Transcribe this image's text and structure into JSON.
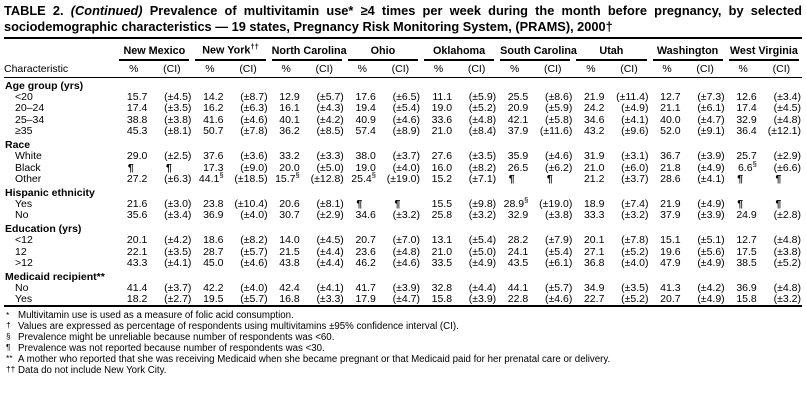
{
  "title": {
    "prefix": "TABLE 2. ",
    "continued": "(Continued)",
    "rest": " Prevalence of multivitamin use* ≥4 times per week during the month before pregnancy, by selected sociodemographic characteristics — 19 states, Pregnancy Risk Monitoring System, (PRAMS), 2000†"
  },
  "table": {
    "characteristic_header": "Characteristic",
    "pct_label": "%",
    "ci_label": "(CI)",
    "states": [
      {
        "label": "New Mexico",
        "sup": ""
      },
      {
        "label": "New York",
        "sup": "††"
      },
      {
        "label": "North Carolina",
        "sup": ""
      },
      {
        "label": "Ohio",
        "sup": ""
      },
      {
        "label": "Oklahoma",
        "sup": ""
      },
      {
        "label": "South Carolina",
        "sup": ""
      },
      {
        "label": "Utah",
        "sup": ""
      },
      {
        "label": "Washington",
        "sup": ""
      },
      {
        "label": "West Virginia",
        "sup": ""
      }
    ],
    "sections": [
      {
        "label": "Age group (yrs)",
        "rows": [
          {
            "label": "<20",
            "cells": [
              [
                "15.7",
                "(±4.5)"
              ],
              [
                "14.2",
                "(±8.7)"
              ],
              [
                "12.9",
                "(±5.7)"
              ],
              [
                "17.6",
                "(±6.5)"
              ],
              [
                "11.1",
                "(±5.9)"
              ],
              [
                "25.5",
                "(±8.6)"
              ],
              [
                "21.9",
                "(±11.4)"
              ],
              [
                "12.7",
                "(±7.3)"
              ],
              [
                "12.6",
                "(±3.4)"
              ]
            ]
          },
          {
            "label": "20–24",
            "cells": [
              [
                "17.4",
                "(±3.5)"
              ],
              [
                "16.2",
                "(±6.3)"
              ],
              [
                "16.1",
                "(±4.3)"
              ],
              [
                "19.4",
                "(±5.4)"
              ],
              [
                "19.0",
                "(±5.2)"
              ],
              [
                "20.9",
                "(±5.9)"
              ],
              [
                "24.2",
                "(±4.9)"
              ],
              [
                "21.1",
                "(±6.1)"
              ],
              [
                "17.4",
                "(±4.5)"
              ]
            ]
          },
          {
            "label": "25–34",
            "cells": [
              [
                "38.8",
                "(±3.8)"
              ],
              [
                "41.6",
                "(±4.6)"
              ],
              [
                "40.1",
                "(±4.2)"
              ],
              [
                "40.9",
                "(±4.6)"
              ],
              [
                "33.6",
                "(±4.8)"
              ],
              [
                "42.1",
                "(±5.8)"
              ],
              [
                "34.6",
                "(±4.1)"
              ],
              [
                "40.0",
                "(±4.7)"
              ],
              [
                "32.9",
                "(±4.8)"
              ]
            ]
          },
          {
            "label": "≥35",
            "cells": [
              [
                "45.3",
                "(±8.1)"
              ],
              [
                "50.7",
                "(±7.8)"
              ],
              [
                "36.2",
                "(±8.5)"
              ],
              [
                "57.4",
                "(±8.9)"
              ],
              [
                "21.0",
                "(±8.4)"
              ],
              [
                "37.9",
                "(±11.6)"
              ],
              [
                "43.2",
                "(±9.6)"
              ],
              [
                "52.0",
                "(±9.1)"
              ],
              [
                "36.4",
                "(±12.1)"
              ]
            ]
          }
        ]
      },
      {
        "label": "Race",
        "rows": [
          {
            "label": "White",
            "cells": [
              [
                "29.0",
                "(±2.5)"
              ],
              [
                "37.6",
                "(±3.6)"
              ],
              [
                "33.2",
                "(±3.3)"
              ],
              [
                "38.0",
                "(±3.7)"
              ],
              [
                "27.6",
                "(±3.5)"
              ],
              [
                "35.9",
                "(±4.6)"
              ],
              [
                "31.9",
                "(±3.1)"
              ],
              [
                "36.7",
                "(±3.9)"
              ],
              [
                "25.7",
                "(±2.9)"
              ]
            ]
          },
          {
            "label": "Black",
            "cells": [
              [
                "¶",
                "¶"
              ],
              [
                "17.3",
                "(±9.0)"
              ],
              [
                "20.0",
                "(±5.0)"
              ],
              [
                "19.0",
                "(±4.0)"
              ],
              [
                "16.0",
                "(±8.2)"
              ],
              [
                "26.5",
                "(±6.2)"
              ],
              [
                "21.0",
                "(±6.0)"
              ],
              [
                "21.8",
                "(±4.9)"
              ],
              [
                "6.6§",
                "(±6.6)"
              ]
            ]
          },
          {
            "label": "Other",
            "cells": [
              [
                "27.2",
                "(±6.3)"
              ],
              [
                "44.1§",
                "(±18.5)"
              ],
              [
                "15.7§",
                "(±12.8)"
              ],
              [
                "25.4§",
                "(±19.0)"
              ],
              [
                "15.2",
                "(±7.1)"
              ],
              [
                "¶",
                "¶"
              ],
              [
                "21.2",
                "(±3.7)"
              ],
              [
                "28.6",
                "(±4.1)"
              ],
              [
                "¶",
                "¶"
              ]
            ]
          }
        ]
      },
      {
        "label": "Hispanic ethnicity",
        "rows": [
          {
            "label": "Yes",
            "cells": [
              [
                "21.6",
                "(±3.0)"
              ],
              [
                "23.8",
                "(±10.4)"
              ],
              [
                "20.6",
                "(±8.1)"
              ],
              [
                "¶",
                "¶"
              ],
              [
                "15.5",
                "(±9.8)"
              ],
              [
                "28.9§",
                "(±19.0)"
              ],
              [
                "18.9",
                "(±7.4)"
              ],
              [
                "21.9",
                "(±4.9)"
              ],
              [
                "¶",
                "¶"
              ]
            ]
          },
          {
            "label": "No",
            "cells": [
              [
                "35.6",
                "(±3.4)"
              ],
              [
                "36.9",
                "(±4.0)"
              ],
              [
                "30.7",
                "(±2.9)"
              ],
              [
                "34.6",
                "(±3.2)"
              ],
              [
                "25.8",
                "(±3.2)"
              ],
              [
                "32.9",
                "(±3.8)"
              ],
              [
                "33.3",
                "(±3.2)"
              ],
              [
                "37.9",
                "(±3.9)"
              ],
              [
                "24.9",
                "(±2.8)"
              ]
            ]
          }
        ]
      },
      {
        "label": "Education (yrs)",
        "rows": [
          {
            "label": "<12",
            "cells": [
              [
                "20.1",
                "(±4.2)"
              ],
              [
                "18.6",
                "(±8.2)"
              ],
              [
                "14.0",
                "(±4.5)"
              ],
              [
                "20.7",
                "(±7.0)"
              ],
              [
                "13.1",
                "(±5.4)"
              ],
              [
                "28.2",
                "(±7.9)"
              ],
              [
                "20.1",
                "(±7.8)"
              ],
              [
                "15.1",
                "(±5.1)"
              ],
              [
                "12.7",
                "(±4.8)"
              ]
            ]
          },
          {
            "label": "12",
            "cells": [
              [
                "22.1",
                "(±3.5)"
              ],
              [
                "28.7",
                "(±5.7)"
              ],
              [
                "21.5",
                "(±4.4)"
              ],
              [
                "23.6",
                "(±4.8)"
              ],
              [
                "21.0",
                "(±5.0)"
              ],
              [
                "24.1",
                "(±5.4)"
              ],
              [
                "27.1",
                "(±5.2)"
              ],
              [
                "19.6",
                "(±5.6)"
              ],
              [
                "17.5",
                "(±3.8)"
              ]
            ]
          },
          {
            "label": ">12",
            "cells": [
              [
                "43.3",
                "(±4.1)"
              ],
              [
                "45.0",
                "(±4.6)"
              ],
              [
                "43.8",
                "(±4.4)"
              ],
              [
                "46.2",
                "(±4.6)"
              ],
              [
                "33.5",
                "(±4.9)"
              ],
              [
                "43.5",
                "(±6.1)"
              ],
              [
                "36.8",
                "(±4.0)"
              ],
              [
                "47.9",
                "(±4.9)"
              ],
              [
                "38.5",
                "(±5.2)"
              ]
            ]
          }
        ]
      },
      {
        "label": "Medicaid recipient**",
        "rows": [
          {
            "label": "No",
            "cells": [
              [
                "41.4",
                "(±3.7)"
              ],
              [
                "42.2",
                "(±4.0)"
              ],
              [
                "42.4",
                "(±4.1)"
              ],
              [
                "41.7",
                "(±3.9)"
              ],
              [
                "32.8",
                "(±4.4)"
              ],
              [
                "44.1",
                "(±5.7)"
              ],
              [
                "34.9",
                "(±3.5)"
              ],
              [
                "41.3",
                "(±4.2)"
              ],
              [
                "36.9",
                "(±4.8)"
              ]
            ]
          },
          {
            "label": "Yes",
            "cells": [
              [
                "18.2",
                "(±2.7)"
              ],
              [
                "19.5",
                "(±5.7)"
              ],
              [
                "16.8",
                "(±3.3)"
              ],
              [
                "17.9",
                "(±4.7)"
              ],
              [
                "15.8",
                "(±3.9)"
              ],
              [
                "22.8",
                "(±4.6)"
              ],
              [
                "22.7",
                "(±5.2)"
              ],
              [
                "20.7",
                "(±4.9)"
              ],
              [
                "15.8",
                "(±3.2)"
              ]
            ]
          }
        ]
      }
    ]
  },
  "footnotes": [
    {
      "marker": "*",
      "text": "Multivitamin use is used as a measure of folic acid consumption."
    },
    {
      "marker": "†",
      "text": "Values are expressed as percentage of respondents using multivitamins ±95% confidence interval (CI)."
    },
    {
      "marker": "§",
      "text": "Prevalence might be unreliable because number of respondents was <60."
    },
    {
      "marker": "¶",
      "text": "Prevalence was not reported because number of respondents was <30."
    },
    {
      "marker": "**",
      "text": "A mother who reported that she was receiving Medicaid when she became pregnant or that Medicaid paid for her prenatal care or delivery."
    },
    {
      "marker": "††",
      "text": "Data do not include New York City."
    }
  ]
}
